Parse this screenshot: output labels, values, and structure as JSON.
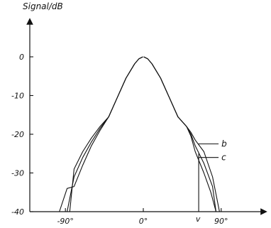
{
  "chart_data": {
    "type": "line",
    "ylabel": "Signal/dB",
    "xlabel": "",
    "xlim": [
      -120,
      120
    ],
    "ylim": [
      -40,
      0
    ],
    "x_ticks": [
      {
        "value": -90,
        "label": "-90°"
      },
      {
        "value": 0,
        "label": "0°"
      },
      {
        "value": 90,
        "label": "90°"
      }
    ],
    "y_ticks": [
      {
        "value": 0,
        "label": "0"
      },
      {
        "value": -10,
        "label": "-10"
      },
      {
        "value": -20,
        "label": "-20"
      },
      {
        "value": -30,
        "label": "-30"
      },
      {
        "value": -40,
        "label": "-40"
      }
    ],
    "series": [
      {
        "x": [
          -0.5,
          -5,
          -10,
          -20,
          -30,
          -40,
          -50,
          -60,
          -70,
          -80,
          -88,
          -97
        ],
        "y": [
          0,
          -0.5,
          -1.8,
          -5.5,
          -10.5,
          -15.5,
          -19,
          -23,
          -28,
          -33.5,
          -34,
          -40
        ]
      },
      {
        "x": [
          -0.5,
          -5,
          -10,
          -20,
          -30,
          -40,
          -50,
          -60,
          -70,
          -80,
          -88
        ],
        "y": [
          0,
          -0.5,
          -1.8,
          -5.5,
          -10.5,
          -15.5,
          -18.5,
          -22,
          -26,
          -31,
          -40
        ]
      },
      {
        "x": [
          -0.5,
          -5,
          -10,
          -20,
          -30,
          -40,
          -50,
          -60,
          -70,
          -80,
          -85
        ],
        "y": [
          0,
          -0.5,
          -1.8,
          -5.5,
          -10.5,
          -15.5,
          -18,
          -21,
          -24.5,
          -29,
          -40
        ]
      },
      {
        "x": [
          0.5,
          5,
          10,
          20,
          30,
          40,
          50,
          55,
          60,
          70,
          80,
          88
        ],
        "y": [
          0,
          -0.5,
          -1.8,
          -5.5,
          -10.5,
          -15.5,
          -18,
          -19.5,
          -21.5,
          -24.5,
          -31,
          -40
        ]
      },
      {
        "x": [
          0.5,
          5,
          10,
          20,
          30,
          40,
          50,
          55,
          60,
          70,
          80,
          84
        ],
        "y": [
          0,
          -0.5,
          -1.8,
          -5.5,
          -10.5,
          -15.5,
          -18,
          -20,
          -23,
          -27.5,
          -33.5,
          -40
        ]
      },
      {
        "x": [
          0.5,
          5,
          10,
          20,
          30,
          40,
          50,
          55,
          60,
          70,
          78,
          84
        ],
        "y": [
          0,
          -0.5,
          -1.8,
          -5.5,
          -10.5,
          -15.5,
          -18,
          -20.5,
          -24.5,
          -30,
          -35,
          -40
        ]
      }
    ],
    "marker": {
      "x": 64,
      "y_top": -25,
      "y_bottom": -40,
      "label": "v"
    },
    "annotations": [
      {
        "text": "b",
        "x": 63.5,
        "y": -22.5
      },
      {
        "text": "c",
        "x": 63.5,
        "y": -26
      }
    ],
    "grid": false,
    "legend": "none"
  }
}
